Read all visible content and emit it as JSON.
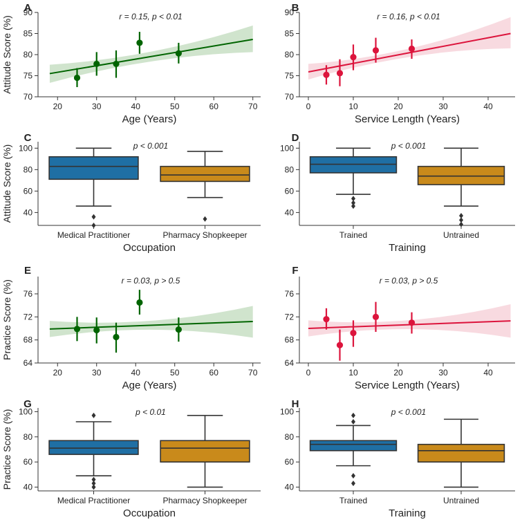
{
  "colors": {
    "green": "#006400",
    "green_band": "#c8dfc4",
    "red": "#dc143c",
    "red_band": "#f7d3da",
    "blue": "#1f6fa4",
    "gold": "#c98a1b",
    "axis": "#333333"
  },
  "chart_data": [
    {
      "panel": "A",
      "type": "scatter",
      "title": "",
      "xlabel": "Age (Years)",
      "ylabel": "Attitude Score (%)",
      "annotation": "r = 0.15, p < 0.01",
      "xlim": [
        15,
        72
      ],
      "ylim": [
        70,
        90
      ],
      "xticks": [
        20,
        30,
        40,
        50,
        60,
        70
      ],
      "yticks": [
        70,
        75,
        80,
        85,
        90
      ],
      "color": "green",
      "points": [
        {
          "x": 25,
          "y": 74.5,
          "lo": 72.3,
          "hi": 76.8
        },
        {
          "x": 30,
          "y": 77.8,
          "lo": 75.0,
          "hi": 80.6
        },
        {
          "x": 35,
          "y": 77.8,
          "lo": 74.5,
          "hi": 81.0
        },
        {
          "x": 41,
          "y": 82.8,
          "lo": 80.2,
          "hi": 85.4
        },
        {
          "x": 51,
          "y": 80.3,
          "lo": 77.9,
          "hi": 82.8
        }
      ],
      "fit": {
        "x0": 18,
        "x1": 70,
        "y0": 75.5,
        "y1": 83.6,
        "band_lo": [
          73.3,
          80.6
        ],
        "band_hi": [
          77.6,
          86.9
        ]
      }
    },
    {
      "panel": "B",
      "type": "scatter",
      "title": "",
      "xlabel": "Service Length (Years)",
      "ylabel": "",
      "annotation": "r = 0.16, p < 0.01",
      "xlim": [
        -2,
        46
      ],
      "ylim": [
        70,
        90
      ],
      "xticks": [
        0,
        10,
        20,
        30,
        40
      ],
      "yticks": [
        70,
        75,
        80,
        85,
        90
      ],
      "color": "red",
      "points": [
        {
          "x": 4,
          "y": 75.2,
          "lo": 72.9,
          "hi": 77.5
        },
        {
          "x": 7,
          "y": 75.6,
          "lo": 72.5,
          "hi": 78.9
        },
        {
          "x": 10,
          "y": 79.4,
          "lo": 76.3,
          "hi": 82.4
        },
        {
          "x": 15,
          "y": 81.0,
          "lo": 78.1,
          "hi": 84.0
        },
        {
          "x": 23,
          "y": 81.4,
          "lo": 79.0,
          "hi": 83.6
        }
      ],
      "fit": {
        "x0": 0,
        "x1": 45,
        "y0": 75.9,
        "y1": 85.0,
        "band_lo": [
          74.1,
          81.5
        ],
        "band_hi": [
          77.8,
          88.9
        ]
      }
    },
    {
      "panel": "C",
      "type": "box",
      "xlabel": "Occupation",
      "ylabel": "Attitude Score (%)",
      "annotation": "p < 0.001",
      "ylim": [
        28,
        106
      ],
      "yticks": [
        40,
        60,
        80,
        100
      ],
      "boxes": [
        {
          "label": "Medical Practitioner",
          "color": "blue",
          "whislo": 46,
          "q1": 71,
          "med": 83,
          "q3": 92,
          "whishi": 100,
          "fliers": [
            28,
            36
          ]
        },
        {
          "label": "Pharmacy Shopkeeper",
          "color": "gold",
          "whislo": 54,
          "q1": 69,
          "med": 75,
          "q3": 83,
          "whishi": 97,
          "fliers": [
            34
          ]
        }
      ]
    },
    {
      "panel": "D",
      "type": "box",
      "xlabel": "Training",
      "ylabel": "",
      "annotation": "p < 0.001",
      "ylim": [
        28,
        106
      ],
      "yticks": [
        40,
        60,
        80,
        100
      ],
      "boxes": [
        {
          "label": "Trained",
          "color": "blue",
          "whislo": 57,
          "q1": 77,
          "med": 85,
          "q3": 92,
          "whishi": 100,
          "fliers": [
            46,
            49,
            53
          ]
        },
        {
          "label": "Untrained",
          "color": "gold",
          "whislo": 46,
          "q1": 66,
          "med": 74,
          "q3": 83,
          "whishi": 100,
          "fliers": [
            29,
            33,
            37
          ]
        }
      ]
    },
    {
      "panel": "E",
      "type": "scatter",
      "title": "",
      "xlabel": "Age (Years)",
      "ylabel": "Practice Score (%)",
      "annotation": "r = 0.03, p > 0.5",
      "xlim": [
        15,
        72
      ],
      "ylim": [
        64,
        79
      ],
      "xticks": [
        20,
        30,
        40,
        50,
        60,
        70
      ],
      "yticks": [
        64,
        68,
        72,
        76
      ],
      "color": "green",
      "points": [
        {
          "x": 25,
          "y": 69.9,
          "lo": 67.8,
          "hi": 72.0
        },
        {
          "x": 30,
          "y": 69.7,
          "lo": 67.4,
          "hi": 71.9
        },
        {
          "x": 35,
          "y": 68.5,
          "lo": 65.8,
          "hi": 71.0
        },
        {
          "x": 41,
          "y": 74.5,
          "lo": 72.4,
          "hi": 76.7
        },
        {
          "x": 51,
          "y": 69.8,
          "lo": 67.7,
          "hi": 71.9
        }
      ],
      "fit": {
        "x0": 18,
        "x1": 70,
        "y0": 69.9,
        "y1": 71.2,
        "band_lo": [
          68.5,
          68.4
        ],
        "band_hi": [
          71.3,
          73.9
        ]
      }
    },
    {
      "panel": "F",
      "type": "scatter",
      "title": "",
      "xlabel": "Service Length (Years)",
      "ylabel": "",
      "annotation": "r = 0.03, p > 0.5",
      "xlim": [
        -2,
        46
      ],
      "ylim": [
        64,
        79
      ],
      "xticks": [
        0,
        10,
        20,
        30,
        40
      ],
      "yticks": [
        64,
        68,
        72,
        76
      ],
      "color": "red",
      "points": [
        {
          "x": 4,
          "y": 71.6,
          "lo": 69.8,
          "hi": 73.5
        },
        {
          "x": 7,
          "y": 67.1,
          "lo": 64.4,
          "hi": 69.8
        },
        {
          "x": 10,
          "y": 69.2,
          "lo": 66.8,
          "hi": 71.4
        },
        {
          "x": 15,
          "y": 72.0,
          "lo": 69.4,
          "hi": 74.6
        },
        {
          "x": 23,
          "y": 71.0,
          "lo": 69.1,
          "hi": 72.8
        }
      ],
      "fit": {
        "x0": 0,
        "x1": 45,
        "y0": 70.0,
        "y1": 71.3,
        "band_lo": [
          68.6,
          68.4
        ],
        "band_hi": [
          71.4,
          74.2
        ]
      }
    },
    {
      "panel": "G",
      "type": "box",
      "xlabel": "Occupation",
      "ylabel": "Practice Score (%)",
      "annotation": "p < 0.01",
      "ylim": [
        37,
        103
      ],
      "yticks": [
        40,
        60,
        80,
        100
      ],
      "boxes": [
        {
          "label": "Medical Practitioner",
          "color": "blue",
          "whislo": 49,
          "q1": 66,
          "med": 71,
          "q3": 77,
          "whishi": 92,
          "fliers": [
            40,
            43,
            46,
            97
          ]
        },
        {
          "label": "Pharmacy Shopkeeper",
          "color": "gold",
          "whislo": 40,
          "q1": 60,
          "med": 71,
          "q3": 77,
          "whishi": 97,
          "fliers": []
        }
      ]
    },
    {
      "panel": "H",
      "type": "box",
      "xlabel": "Training",
      "ylabel": "",
      "annotation": "p < 0.001",
      "ylim": [
        37,
        103
      ],
      "yticks": [
        40,
        60,
        80,
        100
      ],
      "boxes": [
        {
          "label": "Trained",
          "color": "blue",
          "whislo": 57,
          "q1": 69,
          "med": 74,
          "q3": 77,
          "whishi": 89,
          "fliers": [
            43,
            49,
            92,
            97
          ]
        },
        {
          "label": "Untrained",
          "color": "gold",
          "whislo": 40,
          "q1": 60,
          "med": 69,
          "q3": 74,
          "whishi": 94,
          "fliers": []
        }
      ]
    }
  ]
}
